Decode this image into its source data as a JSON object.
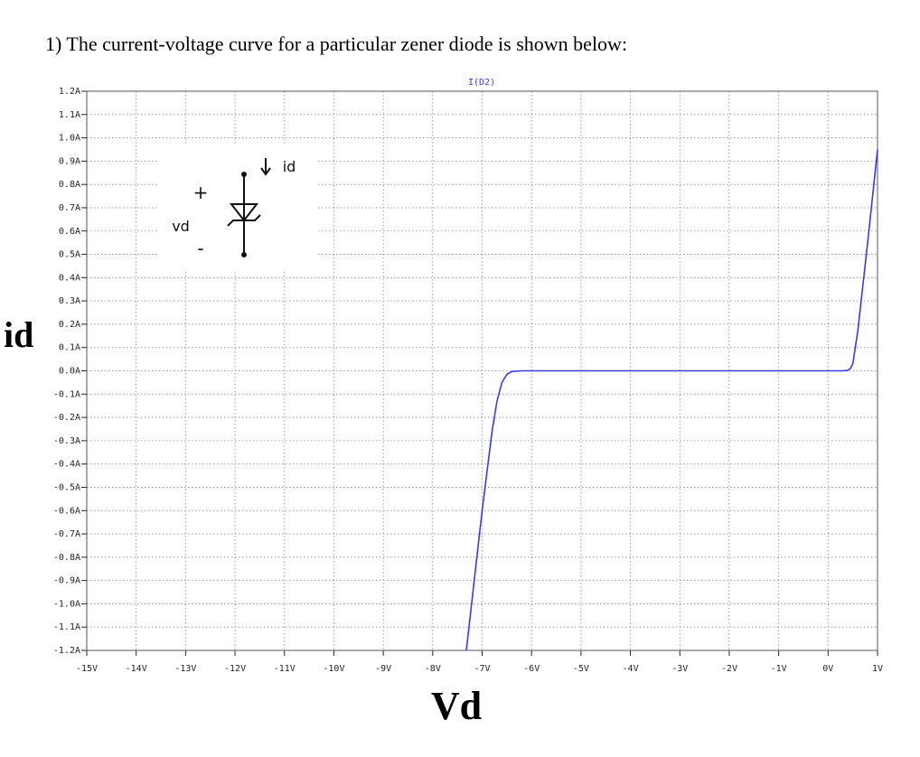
{
  "heading": "1)  The current-voltage curve for a particular zener diode is shown below:",
  "sketch": {
    "plus": "+",
    "minus": "-",
    "voltage": "vd",
    "current": "id"
  },
  "chart_data": {
    "type": "line",
    "trace_label": "I(D2)",
    "ylabel": "id",
    "xlabel": "Vd",
    "x": [
      -7.32,
      -7.0,
      -6.8,
      -6.7,
      -6.6,
      -6.5,
      -6.4,
      -6.2,
      0.3,
      0.4,
      0.45,
      0.5,
      0.6,
      0.8,
      1.0
    ],
    "series": [
      {
        "name": "I(D2)",
        "color": "#3b3be6",
        "values": [
          -1.2,
          -0.6,
          -0.26,
          -0.13,
          -0.05,
          -0.015,
          -0.003,
          0,
          0,
          0.002,
          0.01,
          0.03,
          0.17,
          0.55,
          0.95
        ]
      }
    ],
    "xlim": [
      -15,
      1
    ],
    "ylim": [
      -1.2,
      1.2
    ],
    "grid": true,
    "xticks": [
      {
        "value": -15,
        "label": "-15V"
      },
      {
        "value": -14,
        "label": "-14V"
      },
      {
        "value": -13,
        "label": "-13V"
      },
      {
        "value": -12,
        "label": "-12V"
      },
      {
        "value": -11,
        "label": "-11V"
      },
      {
        "value": -10,
        "label": "-10V"
      },
      {
        "value": -9,
        "label": "-9V"
      },
      {
        "value": -8,
        "label": "-8V"
      },
      {
        "value": -7,
        "label": "-7V"
      },
      {
        "value": -6,
        "label": "-6V"
      },
      {
        "value": -5,
        "label": "-5V"
      },
      {
        "value": -4,
        "label": "-4V"
      },
      {
        "value": -3,
        "label": "-3V"
      },
      {
        "value": -2,
        "label": "-2V"
      },
      {
        "value": -1,
        "label": "-1V"
      },
      {
        "value": 0,
        "label": "0V"
      },
      {
        "value": 1,
        "label": "1V"
      }
    ],
    "yticks": [
      {
        "value": 1.2,
        "label": "1.2A"
      },
      {
        "value": 1.1,
        "label": "1.1A"
      },
      {
        "value": 1.0,
        "label": "1.0A"
      },
      {
        "value": 0.9,
        "label": "0.9A"
      },
      {
        "value": 0.8,
        "label": "0.8A"
      },
      {
        "value": 0.7,
        "label": "0.7A"
      },
      {
        "value": 0.6,
        "label": "0.6A"
      },
      {
        "value": 0.5,
        "label": "0.5A"
      },
      {
        "value": 0.4,
        "label": "0.4A"
      },
      {
        "value": 0.3,
        "label": "0.3A"
      },
      {
        "value": 0.2,
        "label": "0.2A"
      },
      {
        "value": 0.1,
        "label": "0.1A"
      },
      {
        "value": 0,
        "label": "0.0A"
      },
      {
        "value": -0.1,
        "label": "-0.1A"
      },
      {
        "value": -0.2,
        "label": "-0.2A"
      },
      {
        "value": -0.3,
        "label": "-0.3A"
      },
      {
        "value": -0.4,
        "label": "-0.4A"
      },
      {
        "value": -0.5,
        "label": "-0.5A"
      },
      {
        "value": -0.6,
        "label": "-0.6A"
      },
      {
        "value": -0.7,
        "label": "-0.7A"
      },
      {
        "value": -0.8,
        "label": "-0.8A"
      },
      {
        "value": -0.9,
        "label": "-0.9A"
      },
      {
        "value": -1.0,
        "label": "-1.0A"
      },
      {
        "value": -1.1,
        "label": "-1.1A"
      },
      {
        "value": -1.2,
        "label": "-1.2A"
      }
    ]
  }
}
